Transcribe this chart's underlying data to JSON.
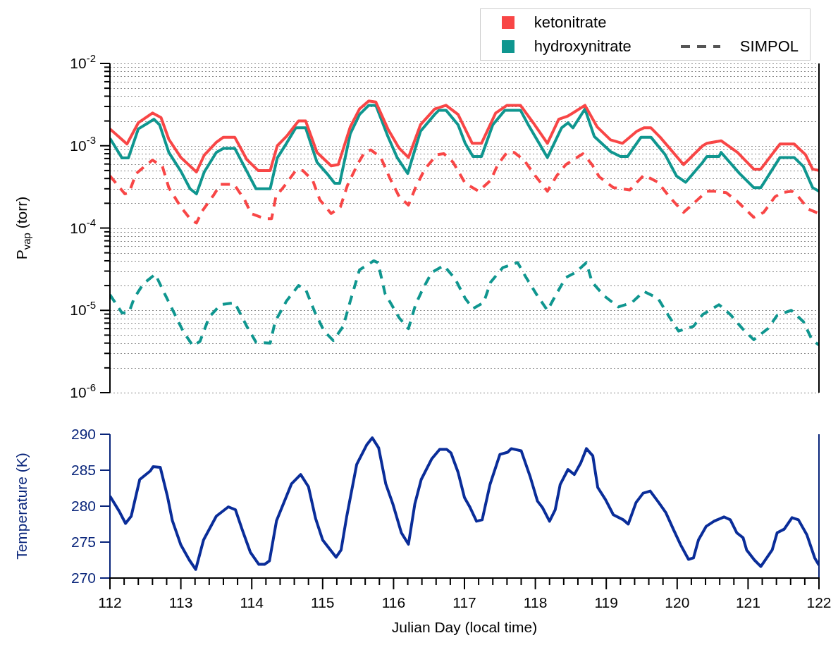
{
  "chart_data": [
    {
      "type": "line",
      "log": "y",
      "xlim": [
        112,
        122
      ],
      "ylim": [
        1e-06,
        0.01
      ],
      "tick_labels": "y",
      "grid": "y",
      "legend": "top right",
      "ylabel": "P$_{vap}$ (torr)",
      "annotations": [
        "SIMPOL"
      ],
      "yticks": [
        {
          "value": 1e-06,
          "label": "10$^{-6}$"
        },
        {
          "value": 2e-06,
          "label": null
        },
        {
          "value": 3e-06,
          "label": null
        },
        {
          "value": 4e-06,
          "label": null
        },
        {
          "value": 5e-06,
          "label": null
        },
        {
          "value": 6e-06,
          "label": null
        },
        {
          "value": 7e-06,
          "label": null
        },
        {
          "value": 8e-06,
          "label": null
        },
        {
          "value": 9e-06,
          "label": null
        },
        {
          "value": 1e-05,
          "label": "10$^{-5}$"
        },
        {
          "value": 2e-05,
          "label": null
        },
        {
          "value": 3e-05,
          "label": null
        },
        {
          "value": 4e-05,
          "label": null
        },
        {
          "value": 5e-05,
          "label": null
        },
        {
          "value": 6e-05,
          "label": null
        },
        {
          "value": 7e-05,
          "label": null
        },
        {
          "value": 8e-05,
          "label": null
        },
        {
          "value": 9e-05,
          "label": null
        },
        {
          "value": 0.0001,
          "label": "10$^{-4}$"
        },
        {
          "value": 0.0002,
          "label": null
        },
        {
          "value": 0.0003,
          "label": null
        },
        {
          "value": 0.0004,
          "label": null
        },
        {
          "value": 0.0005,
          "label": null
        },
        {
          "value": 0.0006,
          "label": null
        },
        {
          "value": 0.0007,
          "label": null
        },
        {
          "value": 0.0008,
          "label": null
        },
        {
          "value": 0.0009,
          "label": null
        },
        {
          "value": 0.001,
          "label": "10$^{-3}$"
        },
        {
          "value": 0.002,
          "label": null
        },
        {
          "value": 0.003,
          "label": null
        },
        {
          "value": 0.004,
          "label": null
        },
        {
          "value": 0.005,
          "label": null
        },
        {
          "value": 0.006,
          "label": null
        },
        {
          "value": 0.007,
          "label": null
        },
        {
          "value": 0.008,
          "label": null
        },
        {
          "value": 0.009,
          "label": null
        },
        {
          "value": 0.01,
          "label": "10$^{-2}$"
        }
      ],
      "series": [
        {
          "name": "ketonitrate",
          "color": "#f84646",
          "line_style": "solid",
          "x": [
            112.0,
            112.24,
            112.4,
            112.6,
            112.72,
            112.83,
            113.0,
            113.22,
            113.33,
            113.5,
            113.6,
            113.76,
            113.93,
            114.09,
            114.26,
            114.36,
            114.49,
            114.66,
            114.76,
            114.92,
            115.12,
            115.22,
            115.39,
            115.52,
            115.65,
            115.75,
            115.92,
            116.08,
            116.21,
            116.38,
            116.58,
            116.74,
            116.91,
            117.11,
            117.24,
            117.44,
            117.6,
            117.79,
            117.97,
            118.17,
            118.33,
            118.46,
            118.53,
            118.7,
            118.87,
            119.06,
            119.23,
            119.43,
            119.53,
            119.63,
            119.76,
            120.09,
            120.36,
            120.42,
            120.62,
            120.85,
            121.08,
            121.18,
            121.45,
            121.65,
            121.81,
            121.91,
            122.0
          ],
          "values": [
            0.0016,
            0.00105,
            0.0019,
            0.0025,
            0.0022,
            0.0012,
            0.00072,
            0.00048,
            0.00077,
            0.0011,
            0.00127,
            0.00127,
            0.00068,
            0.0005,
            0.0005,
            0.001,
            0.0013,
            0.002,
            0.002,
            0.00083,
            0.00057,
            0.00059,
            0.0017,
            0.0028,
            0.0035,
            0.0034,
            0.0016,
            0.00093,
            0.00072,
            0.0018,
            0.0028,
            0.0031,
            0.0024,
            0.00107,
            0.00107,
            0.0025,
            0.0031,
            0.0031,
            0.0019,
            0.00107,
            0.0021,
            0.0023,
            0.0025,
            0.0031,
            0.0017,
            0.00118,
            0.00107,
            0.0015,
            0.00165,
            0.00165,
            0.00127,
            0.00059,
            0.001,
            0.00107,
            0.00115,
            0.00083,
            0.00052,
            0.00052,
            0.00105,
            0.00105,
            0.00078,
            0.00052,
            0.0005
          ]
        },
        {
          "name": "hydroxynitrate",
          "color": "#0f968f",
          "line_style": "solid",
          "x": [
            112.0,
            112.17,
            112.26,
            112.4,
            112.54,
            112.62,
            112.7,
            112.83,
            113.0,
            113.13,
            113.22,
            113.33,
            113.5,
            113.6,
            113.76,
            113.93,
            114.06,
            114.26,
            114.36,
            114.49,
            114.62,
            114.76,
            114.92,
            115.06,
            115.17,
            115.24,
            115.39,
            115.52,
            115.65,
            115.75,
            115.92,
            116.05,
            116.2,
            116.38,
            116.58,
            116.64,
            116.74,
            116.91,
            117.01,
            117.12,
            117.24,
            117.4,
            117.57,
            117.79,
            117.9,
            118.17,
            118.37,
            118.46,
            118.53,
            118.7,
            118.83,
            119.06,
            119.2,
            119.3,
            119.49,
            119.63,
            119.83,
            119.99,
            120.12,
            120.36,
            120.42,
            120.59,
            120.62,
            120.88,
            121.08,
            121.18,
            121.45,
            121.65,
            121.78,
            121.91,
            122.0
          ],
          "values": [
            0.00123,
            0.00071,
            0.00071,
            0.0016,
            0.0019,
            0.0021,
            0.0018,
            0.00083,
            0.00049,
            0.0003,
            0.00026,
            0.00048,
            0.00083,
            0.00093,
            0.00093,
            0.00049,
            0.0003,
            0.0003,
            0.00071,
            0.00107,
            0.00165,
            0.00165,
            0.00063,
            0.00046,
            0.00035,
            0.00035,
            0.0014,
            0.0024,
            0.0031,
            0.0031,
            0.0013,
            0.00072,
            0.00046,
            0.0015,
            0.0024,
            0.0027,
            0.0027,
            0.0018,
            0.00107,
            0.00074,
            0.00074,
            0.0018,
            0.0027,
            0.0027,
            0.0018,
            0.00072,
            0.00165,
            0.0019,
            0.00165,
            0.0028,
            0.0013,
            0.00085,
            0.00074,
            0.00074,
            0.00127,
            0.00127,
            0.00078,
            0.00043,
            0.00036,
            0.00063,
            0.00074,
            0.00074,
            0.00083,
            0.00046,
            0.00031,
            0.00031,
            0.00072,
            0.00072,
            0.00056,
            0.00031,
            0.00028
          ]
        },
        {
          "color": "#f84646",
          "line_style": "dashed",
          "x": [
            112.0,
            112.21,
            112.27,
            112.37,
            112.52,
            112.6,
            112.74,
            112.83,
            113.0,
            113.13,
            113.22,
            113.3,
            113.46,
            113.56,
            113.75,
            113.9,
            113.99,
            114.19,
            114.28,
            114.34,
            114.49,
            114.62,
            114.72,
            114.86,
            114.96,
            115.12,
            115.25,
            115.35,
            115.49,
            115.59,
            115.68,
            115.82,
            115.95,
            116.08,
            116.21,
            116.31,
            116.44,
            116.61,
            116.71,
            116.84,
            117.01,
            117.2,
            117.37,
            117.47,
            117.6,
            117.7,
            117.84,
            118.0,
            118.17,
            118.3,
            118.43,
            118.53,
            118.67,
            118.8,
            118.9,
            119.1,
            119.33,
            119.53,
            119.73,
            119.89,
            120.09,
            120.26,
            120.42,
            120.52,
            120.69,
            120.85,
            121.08,
            121.22,
            121.38,
            121.48,
            121.62,
            121.71,
            121.85,
            122.0
          ],
          "values": [
            0.00043,
            0.00026,
            0.00027,
            0.00046,
            0.00059,
            0.00067,
            0.00056,
            0.00031,
            0.00018,
            0.00013,
            0.000115,
            0.00016,
            0.00025,
            0.00034,
            0.00034,
            0.00022,
            0.00015,
            0.00013,
            0.00013,
            0.00024,
            0.00035,
            0.0005,
            0.0005,
            0.00038,
            0.00022,
            0.00015,
            0.00018,
            0.00033,
            0.00059,
            0.00083,
            0.00089,
            0.00072,
            0.0004,
            0.00024,
            0.00019,
            0.00031,
            0.00052,
            0.00078,
            0.0008,
            0.00063,
            0.00035,
            0.00028,
            0.00038,
            0.00059,
            0.00083,
            0.00083,
            0.00067,
            0.00043,
            0.00028,
            0.00043,
            0.00059,
            0.00067,
            0.0008,
            0.00059,
            0.00042,
            0.00031,
            0.00029,
            0.00044,
            0.00036,
            0.00024,
            0.000155,
            0.00021,
            0.00028,
            0.00028,
            0.00027,
            0.00021,
            0.000135,
            0.000155,
            0.00024,
            0.00027,
            0.00028,
            0.00024,
            0.00017,
            0.00015
          ]
        },
        {
          "color": "#0f968f",
          "line_style": "dashed",
          "x": [
            112.0,
            112.17,
            112.27,
            112.34,
            112.47,
            112.64,
            112.77,
            112.9,
            113.03,
            113.17,
            113.27,
            113.4,
            113.56,
            113.76,
            113.93,
            114.06,
            114.26,
            114.33,
            114.49,
            114.66,
            114.76,
            114.89,
            115.02,
            115.15,
            115.29,
            115.39,
            115.52,
            115.72,
            115.78,
            115.88,
            116.08,
            116.21,
            116.31,
            116.41,
            116.54,
            116.71,
            116.87,
            117.01,
            117.12,
            117.27,
            117.37,
            117.54,
            117.75,
            117.87,
            118.03,
            118.17,
            118.3,
            118.43,
            118.57,
            118.72,
            118.8,
            118.97,
            119.17,
            119.36,
            119.53,
            119.73,
            119.89,
            120.02,
            120.23,
            120.36,
            120.59,
            120.75,
            120.92,
            121.08,
            121.28,
            121.41,
            121.61,
            121.78,
            121.9,
            122.0
          ],
          "values": [
            1.55e-05,
            9.3e-06,
            9.5e-06,
            1.4e-05,
            2.1e-05,
            2.75e-05,
            1.6e-05,
            9.5e-06,
            5.6e-06,
            3.7e-06,
            4.2e-06,
            8.3e-06,
            1.17e-05,
            1.24e-05,
            6.4e-06,
            4.1e-06,
            4e-06,
            7.3e-06,
            1.3e-05,
            2e-05,
            1.8e-05,
            9.5e-06,
            5.6e-06,
            4.3e-06,
            6.4e-06,
            1.3e-05,
            3.1e-05,
            4e-05,
            3.8e-05,
            1.6e-05,
            8.1e-06,
            6e-06,
            1.17e-05,
            1.8e-05,
            2.9e-05,
            3.5e-05,
            2.4e-05,
            1.4e-05,
            1.05e-05,
            1.24e-05,
            2.2e-05,
            3.3e-05,
            3.8e-05,
            2.5e-05,
            1.5e-05,
            1e-05,
            1.6e-05,
            2.5e-05,
            2.9e-05,
            3.8e-05,
            2.2e-05,
            1.5e-05,
            1.1e-05,
            1.24e-05,
            1.7e-05,
            1.4e-05,
            8.3e-06,
            5.6e-06,
            6.4e-06,
            8.9e-06,
            1.17e-05,
            8.9e-06,
            6e-06,
            4.4e-06,
            6e-06,
            8.7e-06,
            1e-05,
            7.3e-06,
            4.4e-06,
            3.8e-06
          ]
        }
      ]
    },
    {
      "type": "line",
      "xlim": [
        112,
        122
      ],
      "ylim": [
        270,
        290
      ],
      "yticks": [
        270,
        275,
        280,
        285,
        290
      ],
      "xlabel": "Julian Day (local time)",
      "ylabel": "Temperature (K)",
      "xticks": [
        112,
        {
          "value": 112.2,
          "label": null
        },
        {
          "value": 112.4,
          "label": null
        },
        {
          "value": 112.6,
          "label": null
        },
        {
          "value": 112.8,
          "label": null
        },
        113,
        {
          "value": 113.2,
          "label": null
        },
        {
          "value": 113.4,
          "label": null
        },
        {
          "value": 113.6,
          "label": null
        },
        {
          "value": 113.8,
          "label": null
        },
        114,
        {
          "value": 114.2,
          "label": null
        },
        {
          "value": 114.4,
          "label": null
        },
        {
          "value": 114.6,
          "label": null
        },
        {
          "value": 114.8,
          "label": null
        },
        115,
        {
          "value": 115.2,
          "label": null
        },
        {
          "value": 115.4,
          "label": null
        },
        {
          "value": 115.6,
          "label": null
        },
        {
          "value": 115.8,
          "label": null
        },
        116,
        {
          "value": 116.2,
          "label": null
        },
        {
          "value": 116.4,
          "label": null
        },
        {
          "value": 116.6,
          "label": null
        },
        {
          "value": 116.8,
          "label": null
        },
        117,
        {
          "value": 117.2,
          "label": null
        },
        {
          "value": 117.4,
          "label": null
        },
        {
          "value": 117.6,
          "label": null
        },
        {
          "value": 117.8,
          "label": null
        },
        118,
        {
          "value": 118.2,
          "label": null
        },
        {
          "value": 118.4,
          "label": null
        },
        {
          "value": 118.6,
          "label": null
        },
        {
          "value": 118.8,
          "label": null
        },
        119,
        {
          "value": 119.2,
          "label": null
        },
        {
          "value": 119.4,
          "label": null
        },
        {
          "value": 119.6,
          "label": null
        },
        {
          "value": 119.8,
          "label": null
        },
        120,
        {
          "value": 120.2,
          "label": null
        },
        {
          "value": 120.4,
          "label": null
        },
        {
          "value": 120.6,
          "label": null
        },
        {
          "value": 120.8,
          "label": null
        },
        121,
        {
          "value": 121.2,
          "label": null
        },
        {
          "value": 121.4,
          "label": null
        },
        {
          "value": 121.6,
          "label": null
        },
        {
          "value": 121.8,
          "label": null
        },
        122
      ],
      "series": [
        {
          "color": "#0a2d99",
          "x": [
            112.0,
            112.13,
            112.22,
            112.3,
            112.42,
            112.57,
            112.61,
            112.71,
            112.81,
            112.88,
            113.0,
            113.12,
            113.21,
            113.32,
            113.5,
            113.67,
            113.77,
            113.87,
            113.98,
            114.1,
            114.18,
            114.25,
            114.35,
            114.56,
            114.69,
            114.8,
            114.9,
            115.0,
            115.11,
            115.19,
            115.26,
            115.34,
            115.48,
            115.62,
            115.7,
            115.79,
            115.89,
            115.99,
            116.11,
            116.21,
            116.3,
            116.39,
            116.54,
            116.65,
            116.75,
            116.81,
            116.91,
            117.0,
            117.08,
            117.17,
            117.25,
            117.36,
            117.5,
            117.61,
            117.66,
            117.8,
            117.93,
            118.03,
            118.1,
            118.2,
            118.28,
            118.35,
            118.46,
            118.55,
            118.64,
            118.72,
            118.81,
            118.88,
            118.99,
            119.1,
            119.24,
            119.31,
            119.42,
            119.52,
            119.62,
            119.74,
            119.84,
            119.95,
            120.05,
            120.16,
            120.23,
            120.3,
            120.41,
            120.52,
            120.66,
            120.75,
            120.84,
            120.93,
            120.98,
            121.09,
            121.18,
            121.34,
            121.41,
            121.51,
            121.62,
            121.71,
            121.83,
            121.94,
            122.0
          ],
          "values": [
            281.4,
            279.3,
            277.6,
            278.6,
            283.7,
            284.9,
            285.5,
            285.4,
            281.4,
            278.0,
            274.6,
            272.5,
            271.2,
            275.3,
            278.6,
            279.9,
            279.5,
            276.6,
            273.6,
            271.9,
            271.9,
            272.4,
            278.0,
            283.1,
            284.4,
            282.7,
            278.3,
            275.3,
            273.9,
            272.9,
            273.9,
            278.6,
            285.8,
            288.5,
            289.5,
            288.1,
            283.1,
            280.3,
            276.3,
            274.7,
            280.3,
            283.7,
            286.6,
            287.9,
            287.9,
            287.4,
            284.7,
            281.2,
            279.8,
            277.9,
            278.1,
            283.0,
            287.2,
            287.5,
            288.0,
            287.7,
            284.0,
            280.7,
            279.8,
            277.9,
            279.5,
            283.0,
            285.1,
            284.4,
            286.0,
            288.0,
            287.0,
            282.6,
            280.9,
            278.8,
            278.1,
            277.5,
            280.5,
            281.8,
            282.1,
            280.5,
            279.1,
            276.7,
            274.6,
            272.6,
            272.8,
            275.3,
            277.2,
            277.9,
            278.5,
            278.1,
            276.3,
            275.6,
            273.9,
            272.5,
            271.6,
            273.9,
            276.3,
            276.8,
            278.4,
            278.1,
            276.0,
            272.8,
            271.8
          ]
        }
      ]
    }
  ]
}
